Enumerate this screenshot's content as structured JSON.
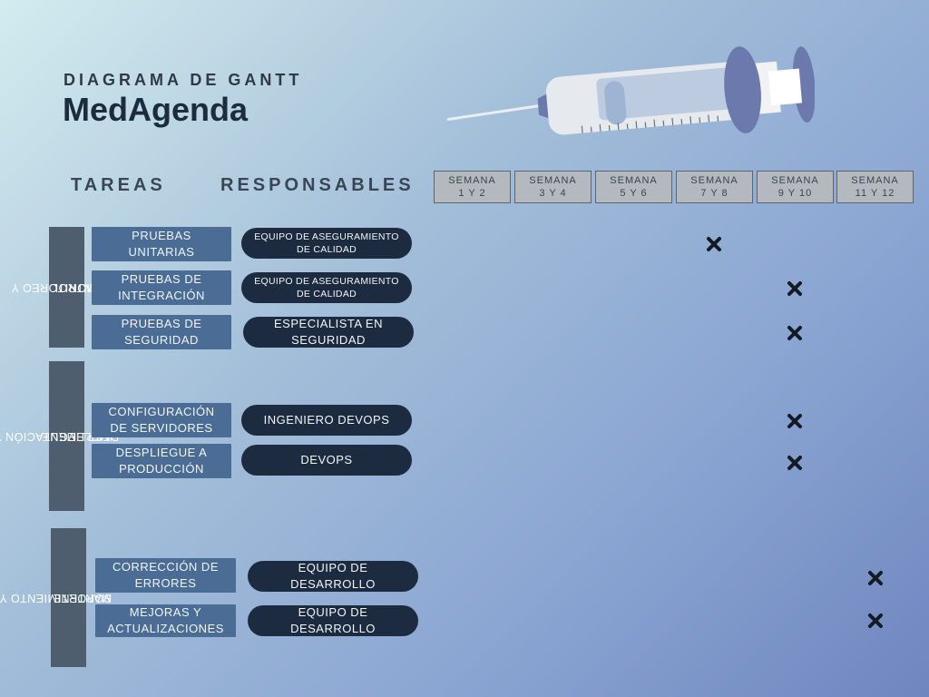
{
  "header": {
    "subtitle": "DIAGRAMA DE GANTT",
    "title": "MedAgenda"
  },
  "columns": {
    "tasks": "TAREAS",
    "responsibles": "RESPONSABLES"
  },
  "weeks": [
    {
      "line1": "SEMANA",
      "line2": "1 Y 2"
    },
    {
      "line1": "SEMANA",
      "line2": "3 Y 4"
    },
    {
      "line1": "SEMANA",
      "line2": "5 Y 6"
    },
    {
      "line1": "SEMANA",
      "line2": "7 Y 8"
    },
    {
      "line1": "SEMANA",
      "line2": "9 Y 10"
    },
    {
      "line1": "SEMANA",
      "line2": "11 Y 12"
    }
  ],
  "phases": [
    {
      "label_line1": "MONITOREO Y",
      "label_line2": "CONTROL",
      "tasks": [
        {
          "line1": "PRUEBAS",
          "line2": "UNITARIAS",
          "resp_line1": "EQUIPO DE ASEGURAMIENTO",
          "resp_line2": "DE CALIDAD",
          "week": "7 Y 8"
        },
        {
          "line1": "PRUEBAS DE",
          "line2": "INTEGRACIÓN",
          "resp_line1": "EQUIPO DE ASEGURAMIENTO",
          "resp_line2": "DE CALIDAD",
          "week": "9 Y 10"
        },
        {
          "line1": "PRUEBAS DE",
          "line2": "SEGURIDAD",
          "resp_line1": "ESPECIALISTA EN",
          "resp_line2": "SEGURIDAD",
          "week": "9 Y 10"
        }
      ]
    },
    {
      "label_line1": "IMPLEMENTACIÓN Y",
      "label_line2": "DESPLIEGUE",
      "tasks": [
        {
          "line1": "CONFIGURACIÓN",
          "line2": "DE SERVIDORES",
          "resp_line1": "INGENIERO DEVOPS",
          "resp_line2": "",
          "week": "9 Y 10"
        },
        {
          "line1": "DESPLIEGUE A",
          "line2": "PRODUCCIÓN",
          "resp_line1": "DEVOPS",
          "resp_line2": "",
          "week": "9 Y 10"
        }
      ]
    },
    {
      "label_line1": "MANTENIMIENTO Y",
      "label_line2": "SOPORTE",
      "tasks": [
        {
          "line1": "CORRECCIÓN DE",
          "line2": "ERRORES",
          "resp_line1": "EQUIPO DE",
          "resp_line2": "DESARROLLO",
          "week": "11 Y 12"
        },
        {
          "line1": "MEJORAS Y",
          "line2": "ACTUALIZACIONES",
          "resp_line1": "EQUIPO DE",
          "resp_line2": "DESARROLLO",
          "week": "11 Y 12"
        }
      ]
    }
  ],
  "icons": {
    "illustration": "syringe-icon",
    "mark": "cross-mark-icon"
  },
  "colors": {
    "task_fill": "#4a6c95",
    "responsible_fill": "#1c2b40",
    "phase_fill": "#4e5e6f",
    "week_fill": "#b4b9bf",
    "syringe_accent": "#6b79ac"
  }
}
